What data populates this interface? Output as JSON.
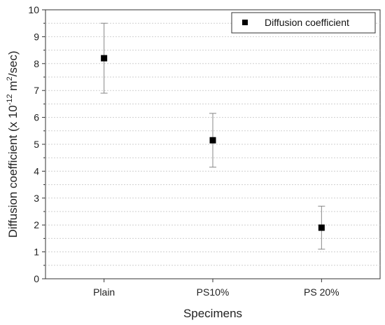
{
  "chart_data": {
    "type": "scatter",
    "categories": [
      "Plain",
      "PS10%",
      "PS 20%"
    ],
    "series": [
      {
        "name": "Diffusion coefficient",
        "values": [
          8.2,
          5.15,
          1.9
        ],
        "error_low": [
          6.9,
          4.15,
          1.1
        ],
        "error_high": [
          9.5,
          6.15,
          2.7
        ]
      }
    ],
    "xlabel": "Specimens",
    "ylabel_parts": {
      "main": "Diffusion coefficient (x 10",
      "exp1": "-12",
      "mid": " m",
      "exp2": "2",
      "end": "/sec)"
    },
    "ylim": [
      0,
      10
    ],
    "yticks": [
      "0",
      "1",
      "2",
      "3",
      "4",
      "5",
      "6",
      "7",
      "8",
      "9",
      "10"
    ],
    "grid": "horizontal dashed at half-units",
    "legend_position": "top-right",
    "marker": "square",
    "colors": {
      "marker": "#000000",
      "errorbar": "#888888",
      "grid": "#cfcfcf",
      "axis": "#333333"
    }
  }
}
